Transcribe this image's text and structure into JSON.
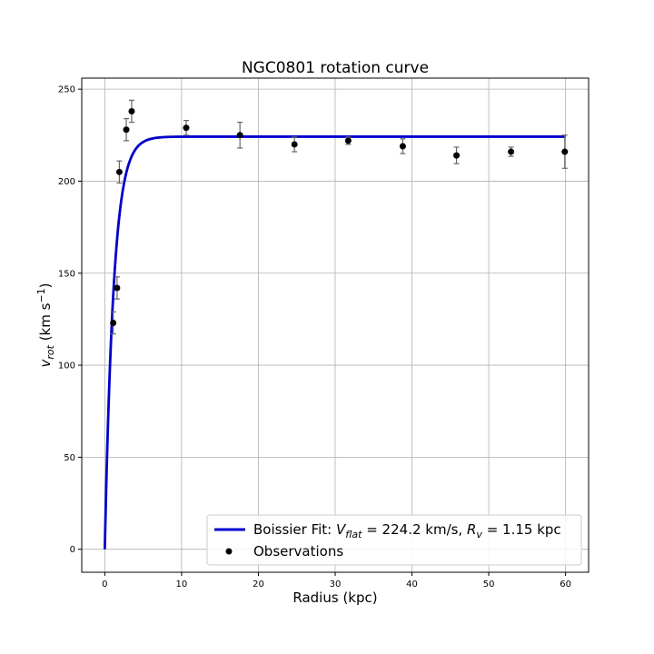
{
  "chart_data": {
    "type": "scatter",
    "title": "NGC0801 rotation curve",
    "xlabel": "Radius (kpc)",
    "ylabel_main": "v",
    "ylabel_sub": "rot",
    "ylabel_unit_pre": " (km s",
    "ylabel_unit_sup": "−1",
    "ylabel_unit_post": ")",
    "xlim": [
      -3,
      63
    ],
    "ylim": [
      -12.5,
      256
    ],
    "xticks": [
      0,
      10,
      20,
      30,
      40,
      50,
      60
    ],
    "yticks": [
      0,
      50,
      100,
      150,
      200,
      250
    ],
    "grid": true,
    "legend_placement": "lower-right",
    "fit": {
      "name_prefix": "Boissier Fit: ",
      "vflat_sym": "V",
      "vflat_sub": "flat",
      "vflat_text": " = 224.2 km/s, ",
      "rv_sym": "R",
      "rv_sub": "v",
      "rv_text": " = 1.15 kpc",
      "vflat": 224.2,
      "rv": 1.15,
      "x_range": [
        0,
        60
      ],
      "color": "#0000cc"
    },
    "observations": {
      "name": "Observations",
      "color": "#000000",
      "error_color": "#666666",
      "x": [
        1.1,
        1.6,
        1.9,
        2.8,
        3.5,
        10.6,
        17.6,
        24.7,
        31.7,
        38.8,
        45.8,
        52.9,
        59.9
      ],
      "y": [
        123,
        142,
        205,
        228,
        238,
        229,
        225,
        220,
        222,
        219,
        214,
        216,
        216
      ],
      "yerr": [
        6,
        6,
        6,
        6,
        6,
        4,
        7,
        4,
        2,
        4,
        4.5,
        2.5,
        9
      ]
    }
  }
}
